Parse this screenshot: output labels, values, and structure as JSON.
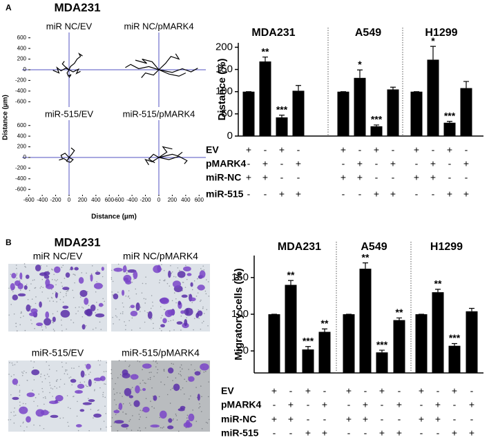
{
  "chart_data": [
    {
      "type": "tracks",
      "panel": "A",
      "title": "MDA231",
      "xlabel": "Distance (µm)",
      "ylabel": "Distance (µm)",
      "xlim": [
        -700,
        700
      ],
      "ylim": [
        -700,
        700
      ],
      "xticks": [
        -600,
        -400,
        -200,
        0,
        200,
        400,
        600
      ],
      "yticks": [
        -600,
        -400,
        -200,
        0,
        200,
        400,
        600
      ],
      "origin_color": "#5050c0",
      "track_color": "#000000",
      "subplots": [
        {
          "title": "miR NC/EV",
          "tracks": [
            {
              "x": [
                0,
                -50,
                -120,
                -180,
                -150,
                -240
              ],
              "y": [
                0,
                30,
                -20,
                40,
                -60,
                -10
              ]
            },
            {
              "x": [
                0,
                60,
                140,
                110,
                170
              ],
              "y": [
                0,
                -40,
                10,
                -70,
                -30
              ]
            },
            {
              "x": [
                0,
                20,
                80,
                120,
                170,
                150,
                200
              ],
              "y": [
                0,
                60,
                120,
                200,
                250,
                300,
                260
              ]
            },
            {
              "x": [
                0,
                -30,
                -10,
                30,
                0
              ],
              "y": [
                0,
                -60,
                -120,
                -90,
                -150
              ]
            },
            {
              "x": [
                0,
                -60,
                -100,
                -70
              ],
              "y": [
                0,
                60,
                110,
                160
              ]
            }
          ]
        },
        {
          "title": "miR NC/pMARK4",
          "tracks": [
            {
              "x": [
                0,
                -150,
                -300,
                -420,
                -500
              ],
              "y": [
                0,
                60,
                20,
                100,
                40
              ]
            },
            {
              "x": [
                0,
                200,
                350,
                480,
                580
              ],
              "y": [
                0,
                -50,
                20,
                -40,
                30
              ]
            },
            {
              "x": [
                0,
                100,
                180,
                300,
                250
              ],
              "y": [
                0,
                120,
                250,
                200,
                300
              ]
            },
            {
              "x": [
                0,
                -80,
                -200,
                -260
              ],
              "y": [
                0,
                -100,
                -60,
                -150
              ]
            },
            {
              "x": [
                0,
                150,
                300,
                400
              ],
              "y": [
                0,
                -80,
                -120,
                -60
              ]
            },
            {
              "x": [
                0,
                -100,
                -250,
                -180,
                -350
              ],
              "y": [
                0,
                150,
                200,
                120,
                180
              ]
            }
          ]
        },
        {
          "title": "miR-515/EV",
          "tracks": [
            {
              "x": [
                0,
                -60,
                -120,
                -100
              ],
              "y": [
                0,
                80,
                40,
                -20
              ]
            },
            {
              "x": [
                0,
                40,
                80,
                30
              ],
              "y": [
                0,
                60,
                130,
                180
              ]
            },
            {
              "x": [
                0,
                -30,
                -80,
                -150
              ],
              "y": [
                0,
                -60,
                -20,
                -50
              ]
            },
            {
              "x": [
                0,
                60,
                20,
                -40
              ],
              "y": [
                0,
                -40,
                -90,
                -70
              ]
            }
          ]
        },
        {
          "title": "miR-515/pMARK4",
          "tracks": [
            {
              "x": [
                0,
                150,
                300,
                420,
                380
              ],
              "y": [
                0,
                -40,
                20,
                -60,
                -120
              ]
            },
            {
              "x": [
                0,
                -100,
                -200,
                -150
              ],
              "y": [
                0,
                -80,
                -40,
                -140
              ]
            },
            {
              "x": [
                0,
                120,
                60,
                200
              ],
              "y": [
                0,
                100,
                200,
                160
              ]
            },
            {
              "x": [
                0,
                -80,
                -150,
                -60
              ],
              "y": [
                0,
                60,
                -30,
                -100
              ]
            },
            {
              "x": [
                0,
                200,
                280,
                350
              ],
              "y": [
                0,
                60,
                30,
                100
              ]
            }
          ]
        }
      ]
    },
    {
      "type": "bar",
      "ylabel": "Distance (%)",
      "ylim": [
        0,
        210
      ],
      "yticks": [
        0,
        50,
        100,
        150,
        200
      ],
      "color": "#000000",
      "groups": [
        {
          "name": "MDA231",
          "values": [
            100,
            168,
            42,
            102
          ],
          "errors": [
            0,
            10,
            5,
            12
          ],
          "annotations": [
            null,
            "**",
            "***",
            null
          ]
        },
        {
          "name": "A549",
          "values": [
            100,
            131,
            22,
            105
          ],
          "errors": [
            0,
            18,
            3,
            5
          ],
          "annotations": [
            null,
            "*",
            "***",
            null
          ]
        },
        {
          "name": "H1299",
          "values": [
            100,
            172,
            30,
            108
          ],
          "errors": [
            0,
            30,
            3,
            15
          ],
          "annotations": [
            null,
            "*",
            "***",
            null
          ]
        }
      ],
      "conditions": [
        {
          "label": "EV",
          "signs": [
            "+",
            "-",
            "+",
            "-"
          ]
        },
        {
          "label": "pMARK4",
          "signs": [
            "-",
            "+",
            "-",
            "+"
          ]
        },
        {
          "label": "miR-NC",
          "signs": [
            "+",
            "+",
            "-",
            "-"
          ]
        },
        {
          "label": "miR-515",
          "signs": [
            "-",
            "-",
            "+",
            "+"
          ]
        }
      ]
    },
    {
      "type": "micrographs",
      "panel": "B",
      "title": "MDA231",
      "images": [
        "miR NC/EV",
        "miR NC/pMARK4",
        "miR-515/EV",
        "miR-515/pMARK4"
      ]
    },
    {
      "type": "bar",
      "ylabel": "Migratory cells (%)",
      "ylim": [
        20,
        180
      ],
      "yticks": [
        50,
        100,
        150
      ],
      "color": "#000000",
      "groups": [
        {
          "name": "MDA231",
          "values": [
            100,
            140,
            52,
            76
          ],
          "errors": [
            0,
            6,
            4,
            4
          ],
          "annotations": [
            null,
            "**",
            "***",
            "**"
          ]
        },
        {
          "name": "A549",
          "values": [
            100,
            162,
            48,
            92
          ],
          "errors": [
            0,
            8,
            3,
            3
          ],
          "annotations": [
            null,
            "**",
            "***",
            "**"
          ]
        },
        {
          "name": "H1299",
          "values": [
            100,
            130,
            57,
            104
          ],
          "errors": [
            0,
            4,
            3,
            4
          ],
          "annotations": [
            null,
            "**",
            "***",
            null
          ]
        }
      ],
      "conditions": [
        {
          "label": "EV",
          "signs": [
            "+",
            "-",
            "+",
            "-"
          ]
        },
        {
          "label": "pMARK4",
          "signs": [
            "-",
            "+",
            "-",
            "+"
          ]
        },
        {
          "label": "miR-NC",
          "signs": [
            "+",
            "+",
            "-",
            "-"
          ]
        },
        {
          "label": "miR-515",
          "signs": [
            "-",
            "-",
            "+",
            "+"
          ]
        }
      ]
    }
  ]
}
